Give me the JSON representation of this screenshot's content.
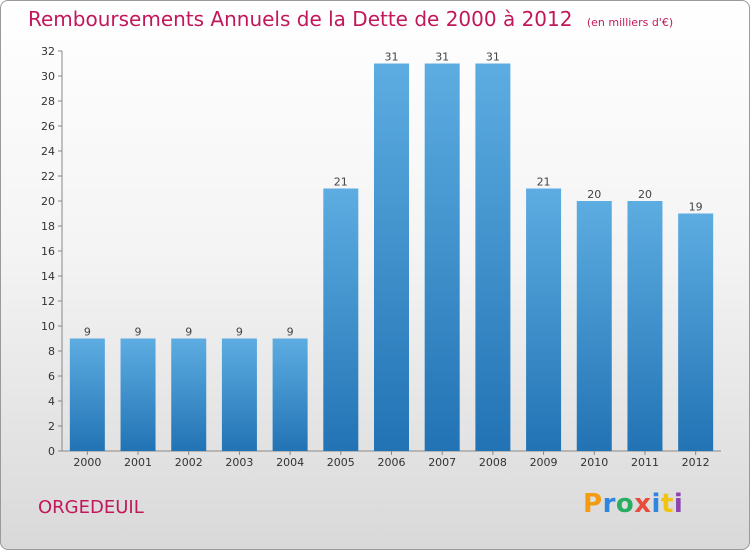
{
  "header": {
    "title": "Remboursements Annuels de la Dette de 2000 à 2012",
    "subtitle": "(en milliers d'€)"
  },
  "footer": {
    "commune": "ORGEDEUIL",
    "logo": [
      "P",
      "r",
      "o",
      "x",
      "i",
      "t",
      "i"
    ],
    "logo_colors": [
      "#f39c12",
      "#2e86de",
      "#27ae60",
      "#e74c3c",
      "#2e86de",
      "#f1c40f",
      "#8e44ad"
    ]
  },
  "colors": {
    "bar_top": "#5dade2",
    "bar_bottom": "#2273b4",
    "title": "#c2185b"
  },
  "chart_data": {
    "type": "bar",
    "categories": [
      "2000",
      "2001",
      "2002",
      "2003",
      "2004",
      "2005",
      "2006",
      "2007",
      "2008",
      "2009",
      "2010",
      "2011",
      "2012"
    ],
    "values": [
      9,
      9,
      9,
      9,
      9,
      21,
      31,
      31,
      31,
      21,
      20,
      20,
      19
    ],
    "title": "Remboursements Annuels de la Dette de 2000 à 2012",
    "subtitle": "(en milliers d'€)",
    "xlabel": "",
    "ylabel": "",
    "ylim": [
      0,
      32
    ],
    "yticks": [
      0,
      2,
      4,
      6,
      8,
      10,
      12,
      14,
      16,
      18,
      20,
      22,
      24,
      26,
      28,
      30,
      32
    ],
    "grid": false,
    "data_labels": true
  }
}
